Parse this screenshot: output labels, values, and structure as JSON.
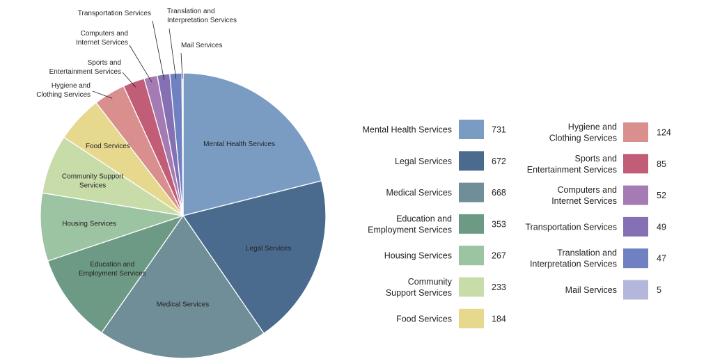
{
  "chart_data": {
    "type": "pie",
    "title": "",
    "series": [
      {
        "name": "Mental Health Services",
        "value": 731,
        "color": "#7a9cc2"
      },
      {
        "name": "Legal Services",
        "value": 672,
        "color": "#4a6b8e"
      },
      {
        "name": "Medical Services",
        "value": 668,
        "color": "#708e98"
      },
      {
        "name": "Education and Employment Services",
        "value": 353,
        "color": "#6d9a85"
      },
      {
        "name": "Housing Services",
        "value": 267,
        "color": "#9cc3a2"
      },
      {
        "name": "Community Support Services",
        "value": 233,
        "color": "#c8dcaa"
      },
      {
        "name": "Food Services",
        "value": 184,
        "color": "#e6d98e"
      },
      {
        "name": "Hygiene and Clothing Services",
        "value": 124,
        "color": "#d98f8d"
      },
      {
        "name": "Sports and Entertainment Services",
        "value": 85,
        "color": "#c15d76"
      },
      {
        "name": "Computers and Internet Services",
        "value": 52,
        "color": "#a57bb3"
      },
      {
        "name": "Transportation Services",
        "value": 49,
        "color": "#8470b2"
      },
      {
        "name": "Translation and Interpretation Services",
        "value": 47,
        "color": "#7081c2"
      },
      {
        "name": "Mail Services",
        "value": 5,
        "color": "#b4b6dc"
      }
    ],
    "legend_placement": "right"
  }
}
